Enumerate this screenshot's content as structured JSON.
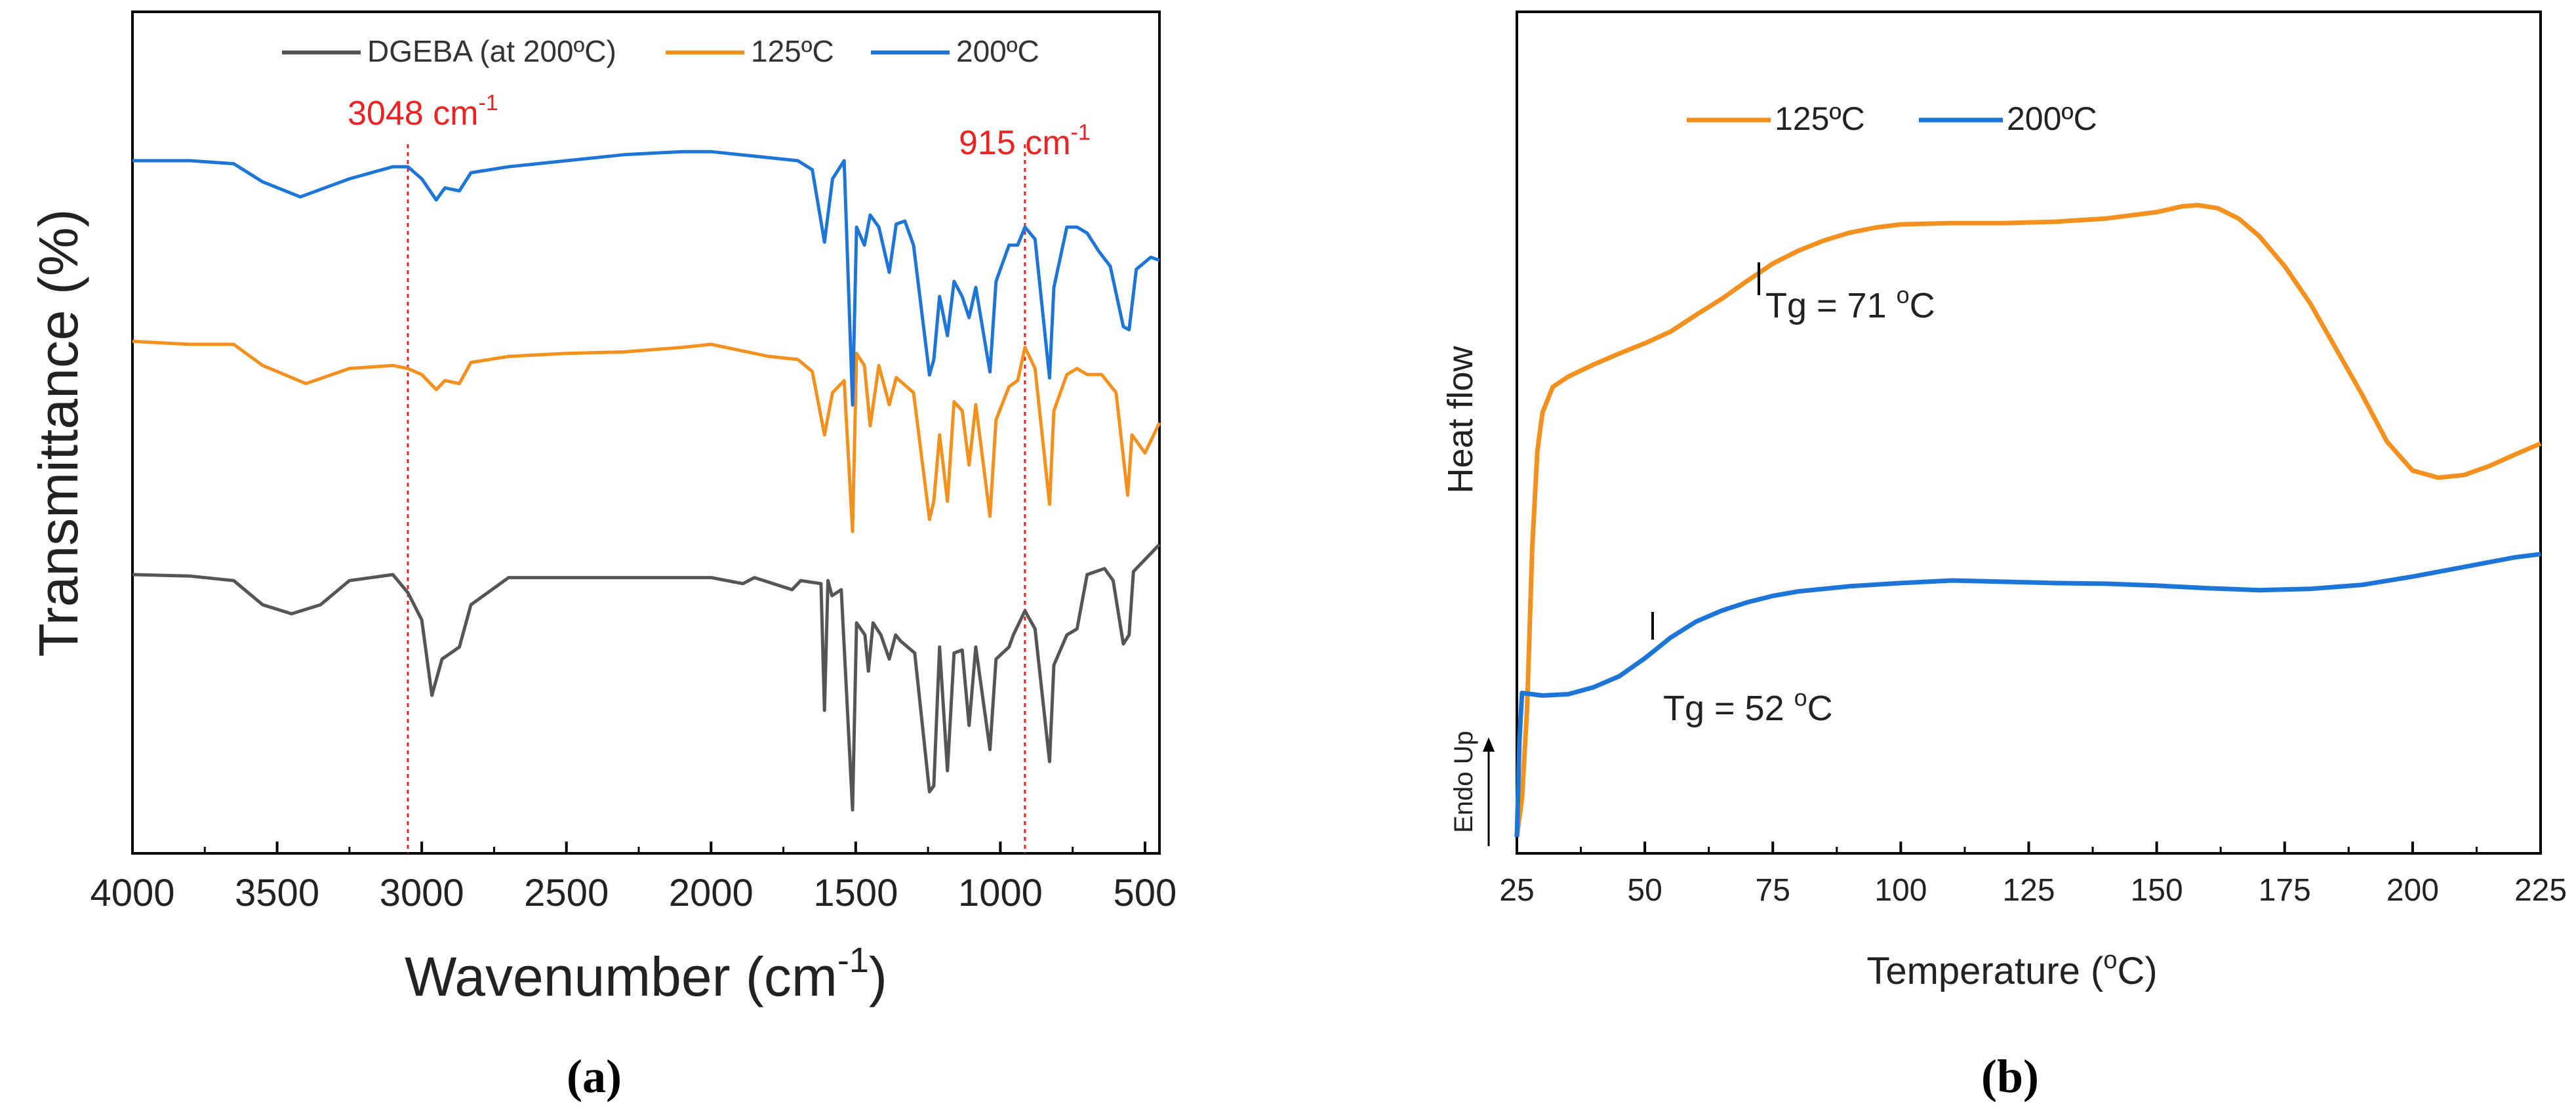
{
  "chart_data": [
    {
      "panel_label": "(a)",
      "type": "line",
      "title": "",
      "xlabel": "Wavenumber (cm",
      "xlabel_sup": "-1",
      "xlabel_end": ")",
      "ylabel": "Transmittance (%)",
      "xlim": [
        4000,
        450
      ],
      "xticks": [
        4000,
        3500,
        3000,
        2500,
        2000,
        1500,
        1000,
        500
      ],
      "legend": {
        "placement": "top",
        "entries": [
          "DGEBA (at 200ºC)",
          "125ºC",
          "200ºC"
        ]
      },
      "annotations": [
        {
          "label": "3048 cm",
          "sup": "-1",
          "x": 3048,
          "color": "#ee2222"
        },
        {
          "label": "915 cm",
          "sup": "-1",
          "x": 915,
          "color": "#ee2222"
        }
      ],
      "series": [
        {
          "name": "DGEBA (at 200ºC)",
          "color": "#555555",
          "points": [
            [
              4000,
              0.1
            ],
            [
              3800,
              0.105
            ],
            [
              3650,
              0.12
            ],
            [
              3550,
              0.2
            ],
            [
              3450,
              0.23
            ],
            [
              3350,
              0.2
            ],
            [
              3250,
              0.12
            ],
            [
              3100,
              0.1
            ],
            [
              3048,
              0.16
            ],
            [
              3000,
              0.25
            ],
            [
              2965,
              0.5
            ],
            [
              2930,
              0.38
            ],
            [
              2870,
              0.34
            ],
            [
              2830,
              0.2
            ],
            [
              2700,
              0.11
            ],
            [
              2500,
              0.11
            ],
            [
              2200,
              0.11
            ],
            [
              2000,
              0.11
            ],
            [
              1890,
              0.13
            ],
            [
              1850,
              0.11
            ],
            [
              1720,
              0.15
            ],
            [
              1690,
              0.12
            ],
            [
              1620,
              0.13
            ],
            [
              1608,
              0.55
            ],
            [
              1596,
              0.12
            ],
            [
              1582,
              0.17
            ],
            [
              1550,
              0.15
            ],
            [
              1511,
              0.88
            ],
            [
              1497,
              0.26
            ],
            [
              1468,
              0.3
            ],
            [
              1456,
              0.42
            ],
            [
              1440,
              0.26
            ],
            [
              1413,
              0.3
            ],
            [
              1384,
              0.38
            ],
            [
              1362,
              0.3
            ],
            [
              1345,
              0.32
            ],
            [
              1296,
              0.36
            ],
            [
              1245,
              0.82
            ],
            [
              1230,
              0.8
            ],
            [
              1210,
              0.34
            ],
            [
              1183,
              0.75
            ],
            [
              1160,
              0.36
            ],
            [
              1132,
              0.35
            ],
            [
              1108,
              0.6
            ],
            [
              1085,
              0.34
            ],
            [
              1036,
              0.68
            ],
            [
              1015,
              0.38
            ],
            [
              970,
              0.34
            ],
            [
              955,
              0.3
            ],
            [
              915,
              0.22
            ],
            [
              880,
              0.28
            ],
            [
              830,
              0.72
            ],
            [
              815,
              0.4
            ],
            [
              770,
              0.3
            ],
            [
              735,
              0.28
            ],
            [
              700,
              0.1
            ],
            [
              640,
              0.08
            ],
            [
              610,
              0.12
            ],
            [
              575,
              0.33
            ],
            [
              555,
              0.3
            ],
            [
              540,
              0.09
            ],
            [
              450,
              0.0
            ]
          ]
        },
        {
          "name": "125ºC",
          "color": "#f4901e",
          "points": [
            [
              4000,
              -0.01
            ],
            [
              3800,
              0.0
            ],
            [
              3650,
              0.0
            ],
            [
              3550,
              0.07
            ],
            [
              3400,
              0.13
            ],
            [
              3250,
              0.08
            ],
            [
              3100,
              0.07
            ],
            [
              3048,
              0.08
            ],
            [
              3000,
              0.1
            ],
            [
              2950,
              0.15
            ],
            [
              2920,
              0.12
            ],
            [
              2870,
              0.13
            ],
            [
              2830,
              0.06
            ],
            [
              2700,
              0.04
            ],
            [
              2500,
              0.03
            ],
            [
              2300,
              0.025
            ],
            [
              2100,
              0.01
            ],
            [
              2000,
              0.0
            ],
            [
              1900,
              0.02
            ],
            [
              1800,
              0.04
            ],
            [
              1700,
              0.05
            ],
            [
              1650,
              0.09
            ],
            [
              1608,
              0.3
            ],
            [
              1580,
              0.16
            ],
            [
              1540,
              0.12
            ],
            [
              1511,
              0.62
            ],
            [
              1497,
              0.03
            ],
            [
              1470,
              0.07
            ],
            [
              1450,
              0.27
            ],
            [
              1420,
              0.07
            ],
            [
              1384,
              0.2
            ],
            [
              1360,
              0.11
            ],
            [
              1300,
              0.16
            ],
            [
              1245,
              0.58
            ],
            [
              1230,
              0.52
            ],
            [
              1210,
              0.3
            ],
            [
              1183,
              0.52
            ],
            [
              1160,
              0.19
            ],
            [
              1132,
              0.22
            ],
            [
              1108,
              0.4
            ],
            [
              1085,
              0.2
            ],
            [
              1036,
              0.57
            ],
            [
              1015,
              0.25
            ],
            [
              970,
              0.14
            ],
            [
              940,
              0.12
            ],
            [
              915,
              0.01
            ],
            [
              880,
              0.08
            ],
            [
              830,
              0.53
            ],
            [
              815,
              0.22
            ],
            [
              770,
              0.1
            ],
            [
              735,
              0.08
            ],
            [
              700,
              0.1
            ],
            [
              650,
              0.1
            ],
            [
              600,
              0.16
            ],
            [
              560,
              0.5
            ],
            [
              545,
              0.3
            ],
            [
              500,
              0.36
            ],
            [
              450,
              0.26
            ]
          ]
        },
        {
          "name": "200ºC",
          "color": "#1d75d8",
          "points": [
            [
              4000,
              0.0
            ],
            [
              3800,
              0.0
            ],
            [
              3650,
              0.01
            ],
            [
              3550,
              0.07
            ],
            [
              3420,
              0.12
            ],
            [
              3250,
              0.06
            ],
            [
              3100,
              0.02
            ],
            [
              3048,
              0.02
            ],
            [
              3000,
              0.06
            ],
            [
              2950,
              0.13
            ],
            [
              2920,
              0.09
            ],
            [
              2870,
              0.1
            ],
            [
              2830,
              0.04
            ],
            [
              2700,
              0.02
            ],
            [
              2500,
              0.0
            ],
            [
              2300,
              -0.02
            ],
            [
              2100,
              -0.03
            ],
            [
              2000,
              -0.03
            ],
            [
              1900,
              -0.02
            ],
            [
              1800,
              -0.01
            ],
            [
              1700,
              0.0
            ],
            [
              1650,
              0.03
            ],
            [
              1608,
              0.27
            ],
            [
              1580,
              0.06
            ],
            [
              1540,
              0.0
            ],
            [
              1511,
              0.81
            ],
            [
              1497,
              0.22
            ],
            [
              1470,
              0.28
            ],
            [
              1450,
              0.18
            ],
            [
              1420,
              0.22
            ],
            [
              1384,
              0.37
            ],
            [
              1360,
              0.21
            ],
            [
              1330,
              0.2
            ],
            [
              1300,
              0.28
            ],
            [
              1245,
              0.71
            ],
            [
              1230,
              0.66
            ],
            [
              1210,
              0.45
            ],
            [
              1183,
              0.58
            ],
            [
              1160,
              0.4
            ],
            [
              1132,
              0.45
            ],
            [
              1108,
              0.52
            ],
            [
              1085,
              0.42
            ],
            [
              1036,
              0.7
            ],
            [
              1015,
              0.4
            ],
            [
              970,
              0.28
            ],
            [
              940,
              0.28
            ],
            [
              915,
              0.22
            ],
            [
              880,
              0.26
            ],
            [
              830,
              0.72
            ],
            [
              815,
              0.42
            ],
            [
              770,
              0.22
            ],
            [
              735,
              0.22
            ],
            [
              700,
              0.24
            ],
            [
              660,
              0.3
            ],
            [
              620,
              0.35
            ],
            [
              575,
              0.55
            ],
            [
              555,
              0.56
            ],
            [
              530,
              0.36
            ],
            [
              480,
              0.32
            ],
            [
              450,
              0.33
            ]
          ]
        }
      ]
    },
    {
      "panel_label": "(b)",
      "type": "line",
      "title": "",
      "xlabel": "Temperature (",
      "xlabel_sup": "o",
      "xlabel_end": "C)",
      "ylabel": "Heat flow",
      "side_label": "Endo Up",
      "xlim": [
        25,
        225
      ],
      "xticks": [
        25,
        50,
        75,
        100,
        125,
        150,
        175,
        200,
        225
      ],
      "legend": {
        "placement": "top-left",
        "entries": [
          "125ºC",
          "200ºC"
        ]
      },
      "annotations": [
        {
          "label": "Tg = 71 ",
          "sup": "o",
          "end": "C",
          "x": 71
        },
        {
          "label": "Tg = 52 ",
          "sup": "o",
          "end": "C",
          "x": 52
        }
      ],
      "series": [
        {
          "name": "125ºC",
          "color": "#f4901e",
          "points": [
            [
              25,
              0.0
            ],
            [
              26,
              0.06
            ],
            [
              27,
              0.2
            ],
            [
              28,
              0.45
            ],
            [
              29,
              0.6
            ],
            [
              30,
              0.66
            ],
            [
              32,
              0.7
            ],
            [
              35,
              0.716
            ],
            [
              40,
              0.735
            ],
            [
              45,
              0.752
            ],
            [
              50,
              0.768
            ],
            [
              55,
              0.786
            ],
            [
              60,
              0.812
            ],
            [
              65,
              0.837
            ],
            [
              70,
              0.865
            ],
            [
              75,
              0.892
            ],
            [
              80,
              0.912
            ],
            [
              85,
              0.928
            ],
            [
              90,
              0.94
            ],
            [
              95,
              0.948
            ],
            [
              100,
              0.953
            ],
            [
              110,
              0.955
            ],
            [
              120,
              0.955
            ],
            [
              130,
              0.957
            ],
            [
              140,
              0.962
            ],
            [
              150,
              0.972
            ],
            [
              155,
              0.981
            ],
            [
              158,
              0.983
            ],
            [
              162,
              0.978
            ],
            [
              166,
              0.962
            ],
            [
              170,
              0.935
            ],
            [
              175,
              0.888
            ],
            [
              180,
              0.83
            ],
            [
              185,
              0.76
            ],
            [
              190,
              0.69
            ],
            [
              195,
              0.615
            ],
            [
              200,
              0.57
            ],
            [
              205,
              0.559
            ],
            [
              210,
              0.563
            ],
            [
              215,
              0.577
            ],
            [
              220,
              0.595
            ],
            [
              225,
              0.612
            ]
          ]
        },
        {
          "name": "200ºC",
          "color": "#1d75d8",
          "points": [
            [
              25,
              0.0
            ],
            [
              25.5,
              0.15
            ],
            [
              26,
              0.224
            ],
            [
              28,
              0.222
            ],
            [
              30,
              0.22
            ],
            [
              35,
              0.222
            ],
            [
              40,
              0.233
            ],
            [
              45,
              0.25
            ],
            [
              50,
              0.278
            ],
            [
              55,
              0.31
            ],
            [
              60,
              0.335
            ],
            [
              65,
              0.352
            ],
            [
              70,
              0.365
            ],
            [
              75,
              0.375
            ],
            [
              80,
              0.382
            ],
            [
              90,
              0.39
            ],
            [
              100,
              0.395
            ],
            [
              110,
              0.399
            ],
            [
              120,
              0.397
            ],
            [
              130,
              0.395
            ],
            [
              140,
              0.394
            ],
            [
              150,
              0.391
            ],
            [
              160,
              0.387
            ],
            [
              170,
              0.384
            ],
            [
              180,
              0.386
            ],
            [
              190,
              0.392
            ],
            [
              200,
              0.405
            ],
            [
              210,
              0.42
            ],
            [
              220,
              0.435
            ],
            [
              225,
              0.44
            ]
          ]
        }
      ]
    }
  ]
}
